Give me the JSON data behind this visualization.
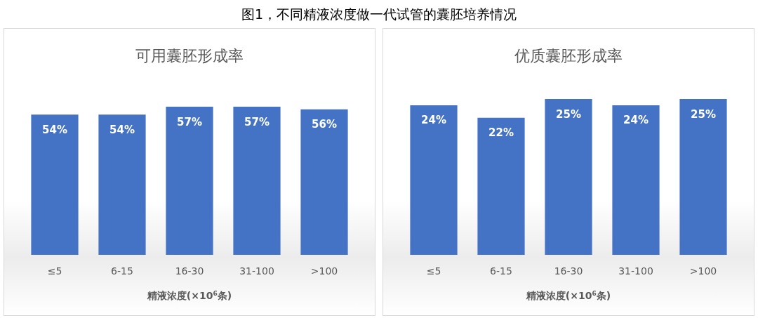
{
  "chart_data": [
    {
      "type": "bar",
      "title": "可用囊胚形成率",
      "annotations": [
        "图1，不同精液浓度做一代试管的囊胚培养情况"
      ],
      "xlabel": "精液浓度(×10$^{6}$条)",
      "categories": [
        "≤5",
        "6-15",
        "16-30",
        "31-100",
        ">100"
      ],
      "values": [
        54,
        54,
        57,
        57,
        56
      ],
      "value_labels": [
        "54%",
        "54%",
        "57%",
        "57%",
        "56%"
      ],
      "color": "#4472c4",
      "tick_labels": "x"
    },
    {
      "type": "bar",
      "title": "优质囊胚形成率",
      "xlabel": "精液浓度(×10$^{6}$条)",
      "categories": [
        "≤5",
        "6-15",
        "16-30",
        "31-100",
        ">100"
      ],
      "values": [
        24,
        22,
        25,
        24,
        25
      ],
      "value_labels": [
        "24%",
        "22%",
        "25%",
        "24%",
        "25%"
      ],
      "color": "#4472c4",
      "tick_labels": "x"
    }
  ]
}
